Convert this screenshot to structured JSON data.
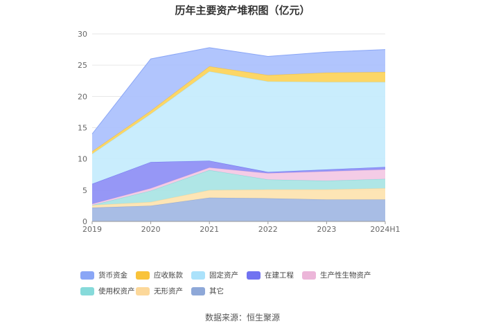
{
  "chart_data": {
    "type": "area",
    "stacked": true,
    "title": "历年主要资产堆积图（亿元）",
    "x": [
      "2019",
      "2020",
      "2021",
      "2022",
      "2023",
      "2024H1"
    ],
    "ylim": [
      0,
      30
    ],
    "yticks": [
      0,
      5,
      10,
      15,
      20,
      25,
      30
    ],
    "grid": true,
    "legend_position": "bottom",
    "series": [
      {
        "name": "其它",
        "color": "#9fb6e2",
        "values": [
          2.2,
          2.5,
          3.8,
          3.7,
          3.5,
          3.5
        ]
      },
      {
        "name": "无形资产",
        "color": "#fde2ad",
        "values": [
          0.4,
          0.6,
          1.2,
          1.4,
          1.6,
          1.8
        ]
      },
      {
        "name": "使用权资产",
        "color": "#a6e3e3",
        "values": [
          0.0,
          1.8,
          3.2,
          1.6,
          1.4,
          1.5
        ]
      },
      {
        "name": "生产性生物资产",
        "color": "#f3c6e3",
        "values": [
          0.2,
          0.4,
          0.4,
          1.0,
          1.5,
          1.5
        ]
      },
      {
        "name": "在建工程",
        "color": "#8b8cf5",
        "values": [
          3.2,
          4.2,
          1.1,
          0.2,
          0.3,
          0.4
        ]
      },
      {
        "name": "固定资产",
        "color": "#c3ebfd",
        "values": [
          4.8,
          7.7,
          14.3,
          14.5,
          14.0,
          13.6
        ]
      },
      {
        "name": "应收账款",
        "color": "#fcd255",
        "values": [
          0.4,
          0.5,
          0.8,
          1.0,
          1.5,
          1.6
        ]
      },
      {
        "name": "货币资金",
        "color": "#a9bffd",
        "values": [
          2.8,
          8.3,
          3.0,
          3.0,
          3.3,
          3.6
        ]
      }
    ],
    "legend_order": [
      "货币资金",
      "应收账款",
      "固定资产",
      "在建工程",
      "生产性生物资产",
      "使用权资产",
      "无形资产",
      "其它"
    ],
    "legend_colors": {
      "货币资金": "#8aa6f6",
      "应收账款": "#f9c33a",
      "固定资产": "#abe2fb",
      "在建工程": "#7173f1",
      "生产性生物资产": "#ecb6d9",
      "使用权资产": "#86dada",
      "无形资产": "#fcd89a",
      "其它": "#8ea8d8"
    }
  },
  "source_text": "数据来源：恒生聚源"
}
